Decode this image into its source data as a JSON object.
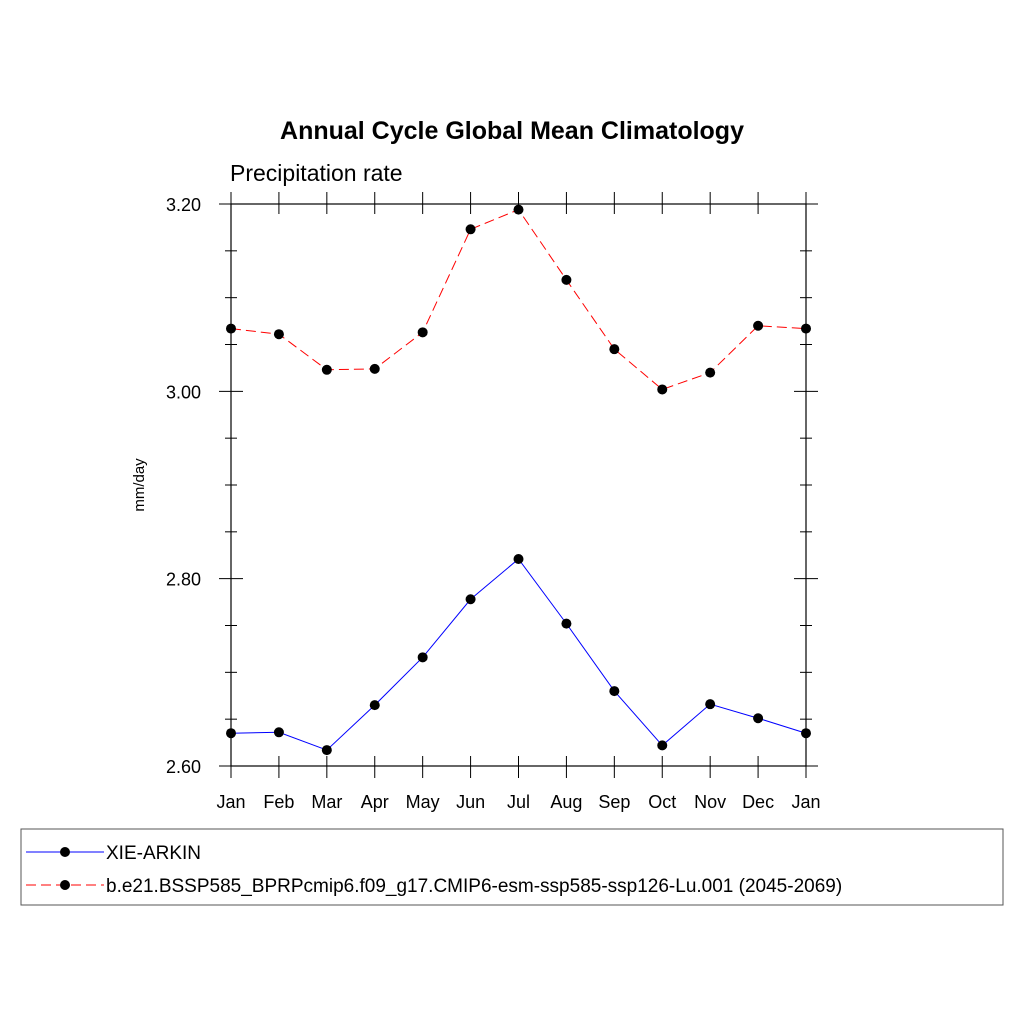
{
  "chart_data": {
    "type": "line",
    "title": "Annual Cycle Global Mean Climatology",
    "subtitle": "Precipitation rate",
    "xlabel": "",
    "ylabel": "mm/day",
    "categories": [
      "Jan",
      "Feb",
      "Mar",
      "Apr",
      "May",
      "Jun",
      "Jul",
      "Aug",
      "Sep",
      "Oct",
      "Nov",
      "Dec",
      "Jan"
    ],
    "ylim": [
      2.6,
      3.2
    ],
    "yticks": [
      2.6,
      2.8,
      3.0,
      3.2
    ],
    "ytick_labels": [
      "2.60",
      "2.80",
      "3.00",
      "3.20"
    ],
    "y_minor_step": 0.05,
    "grid": false,
    "legend_position": "bottom",
    "series": [
      {
        "name": "XIE-ARKIN",
        "color": "#0000ff",
        "dashed": false,
        "values": [
          2.635,
          2.636,
          2.617,
          2.665,
          2.716,
          2.778,
          2.821,
          2.752,
          2.68,
          2.622,
          2.666,
          2.651,
          2.635
        ]
      },
      {
        "name": "b.e21.BSSP585_BPRPcmip6.f09_g17.CMIP6-esm-ssp585-ssp126-Lu.001 (2045-2069)",
        "color": "#ff0000",
        "dashed": true,
        "values": [
          3.067,
          3.061,
          3.023,
          3.024,
          3.063,
          3.173,
          3.194,
          3.119,
          3.045,
          3.002,
          3.02,
          3.07,
          3.067
        ]
      }
    ]
  }
}
